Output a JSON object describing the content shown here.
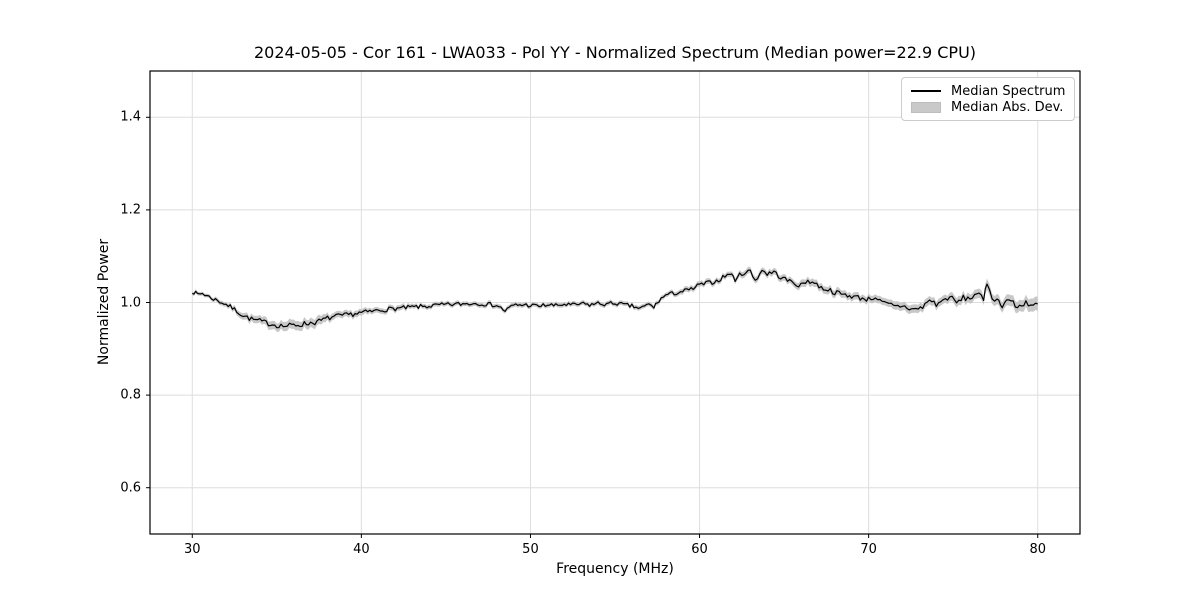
{
  "chart_data": {
    "type": "line",
    "title": "2024-05-05 - Cor 161 - LWA033 - Pol YY - Normalized Spectrum (Median power=22.9 CPU)",
    "xlabel": "Frequency (MHz)",
    "ylabel": "Normalized Power",
    "xlim": [
      27.5,
      82.5
    ],
    "ylim": [
      0.5,
      1.5
    ],
    "xticks": [
      30,
      40,
      50,
      60,
      70,
      80
    ],
    "xtick_labels": [
      "30",
      "40",
      "50",
      "60",
      "70",
      "80"
    ],
    "yticks": [
      0.6,
      0.8,
      1.0,
      1.2,
      1.4
    ],
    "ytick_labels": [
      "0.6",
      "0.8",
      "1.0",
      "1.2",
      "1.4"
    ],
    "grid": true,
    "legend": {
      "position": "upper-right",
      "entries": [
        {
          "label": "Median Spectrum",
          "type": "line",
          "color": "#000000"
        },
        {
          "label": "Median Abs. Dev.",
          "type": "patch",
          "color": "#c9c9c9"
        }
      ]
    },
    "noise_amplitude": 0.0035,
    "colors": {
      "line": "#000000",
      "band": "#c8c8c8",
      "grid": "#dedede",
      "frame": "#000000",
      "background": "#ffffff",
      "text": "#000000"
    },
    "series": [
      {
        "name": "Median Spectrum",
        "x": [
          30.0,
          30.3,
          30.6,
          31.0,
          31.5,
          32.0,
          32.5,
          33.0,
          33.5,
          34.0,
          34.5,
          35.0,
          35.5,
          36.0,
          36.5,
          37.0,
          37.5,
          38.0,
          38.5,
          39.0,
          39.5,
          40.0,
          40.5,
          41.0,
          41.5,
          42.0,
          42.5,
          43.0,
          43.5,
          44.0,
          44.5,
          45.0,
          45.5,
          46.0,
          46.5,
          47.0,
          47.5,
          48.0,
          48.5,
          49.0,
          49.5,
          50.0,
          50.5,
          51.0,
          51.5,
          52.0,
          52.5,
          53.0,
          53.5,
          54.0,
          54.5,
          55.0,
          55.5,
          56.0,
          56.5,
          57.0,
          57.3,
          57.6,
          58.0,
          58.5,
          59.0,
          59.5,
          60.0,
          60.5,
          61.0,
          61.5,
          61.8,
          62.1,
          62.5,
          63.0,
          63.3,
          63.7,
          64.0,
          64.4,
          64.8,
          65.2,
          65.6,
          66.0,
          66.4,
          66.8,
          67.2,
          67.6,
          68.0,
          68.5,
          69.0,
          69.5,
          70.0,
          70.4,
          70.8,
          71.2,
          71.6,
          72.0,
          72.4,
          72.8,
          73.2,
          73.6,
          74.0,
          74.4,
          74.8,
          75.2,
          75.6,
          76.0,
          76.4,
          76.8,
          77.0,
          77.3,
          77.6,
          77.9,
          78.3,
          78.8,
          79.3,
          79.6,
          80.0
        ],
        "y": [
          1.024,
          1.018,
          1.02,
          1.012,
          1.004,
          0.996,
          0.985,
          0.972,
          0.964,
          0.96,
          0.955,
          0.951,
          0.949,
          0.951,
          0.953,
          0.956,
          0.959,
          0.966,
          0.97,
          0.972,
          0.975,
          0.978,
          0.98,
          0.983,
          0.985,
          0.987,
          0.988,
          0.99,
          0.991,
          0.992,
          0.994,
          0.995,
          0.996,
          0.997,
          0.998,
          0.998,
          0.996,
          0.994,
          0.982,
          0.994,
          0.995,
          0.994,
          0.992,
          0.995,
          0.993,
          0.996,
          0.994,
          0.997,
          0.995,
          0.998,
          0.996,
          0.999,
          0.995,
          0.992,
          0.987,
          0.996,
          0.99,
          1.004,
          1.016,
          1.02,
          1.024,
          1.028,
          1.038,
          1.042,
          1.046,
          1.057,
          1.063,
          1.05,
          1.063,
          1.068,
          1.048,
          1.07,
          1.062,
          1.066,
          1.054,
          1.048,
          1.042,
          1.036,
          1.048,
          1.042,
          1.032,
          1.028,
          1.022,
          1.017,
          1.014,
          1.01,
          1.007,
          1.012,
          0.999,
          0.996,
          0.991,
          0.993,
          0.987,
          0.985,
          0.99,
          1.006,
          0.996,
          1.004,
          1.013,
          0.999,
          1.01,
          1.008,
          1.022,
          1.004,
          1.044,
          1.012,
          1.005,
          0.995,
          1.008,
          0.988,
          1.002,
          0.994,
          0.997
        ]
      },
      {
        "name": "Median Abs. Dev.",
        "type": "band",
        "halfwidth": [
          0.004,
          0.004,
          0.004,
          0.004,
          0.005,
          0.005,
          0.006,
          0.007,
          0.008,
          0.008,
          0.009,
          0.009,
          0.01,
          0.01,
          0.01,
          0.01,
          0.01,
          0.008,
          0.007,
          0.007,
          0.007,
          0.007,
          0.006,
          0.006,
          0.006,
          0.006,
          0.006,
          0.005,
          0.005,
          0.005,
          0.005,
          0.005,
          0.005,
          0.005,
          0.005,
          0.005,
          0.005,
          0.005,
          0.005,
          0.005,
          0.005,
          0.005,
          0.005,
          0.005,
          0.005,
          0.005,
          0.005,
          0.005,
          0.005,
          0.005,
          0.005,
          0.005,
          0.005,
          0.005,
          0.005,
          0.005,
          0.005,
          0.005,
          0.005,
          0.005,
          0.006,
          0.006,
          0.006,
          0.006,
          0.006,
          0.006,
          0.006,
          0.006,
          0.007,
          0.007,
          0.007,
          0.007,
          0.007,
          0.007,
          0.007,
          0.007,
          0.007,
          0.008,
          0.008,
          0.008,
          0.008,
          0.008,
          0.008,
          0.008,
          0.008,
          0.008,
          0.008,
          0.008,
          0.008,
          0.008,
          0.009,
          0.009,
          0.009,
          0.009,
          0.009,
          0.009,
          0.009,
          0.009,
          0.009,
          0.01,
          0.01,
          0.01,
          0.01,
          0.01,
          0.012,
          0.011,
          0.011,
          0.011,
          0.012,
          0.012,
          0.013,
          0.014,
          0.015
        ]
      }
    ]
  }
}
